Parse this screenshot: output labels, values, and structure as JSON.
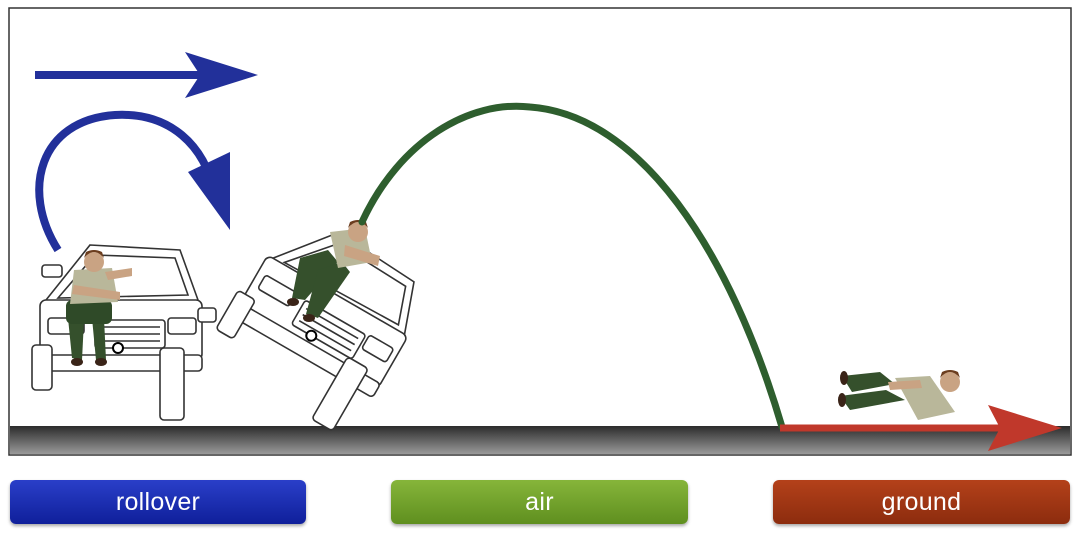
{
  "colors": {
    "rollover": "#22309a",
    "air": "#2e5e2e",
    "ground": "#c0382b"
  },
  "phases": [
    {
      "key": "rollover",
      "label": "rollover",
      "icon": "rollover-motion-arrows"
    },
    {
      "key": "air",
      "label": "air",
      "icon": "trajectory-arc"
    },
    {
      "key": "ground",
      "label": "ground",
      "icon": "ground-slide-arrow"
    }
  ]
}
